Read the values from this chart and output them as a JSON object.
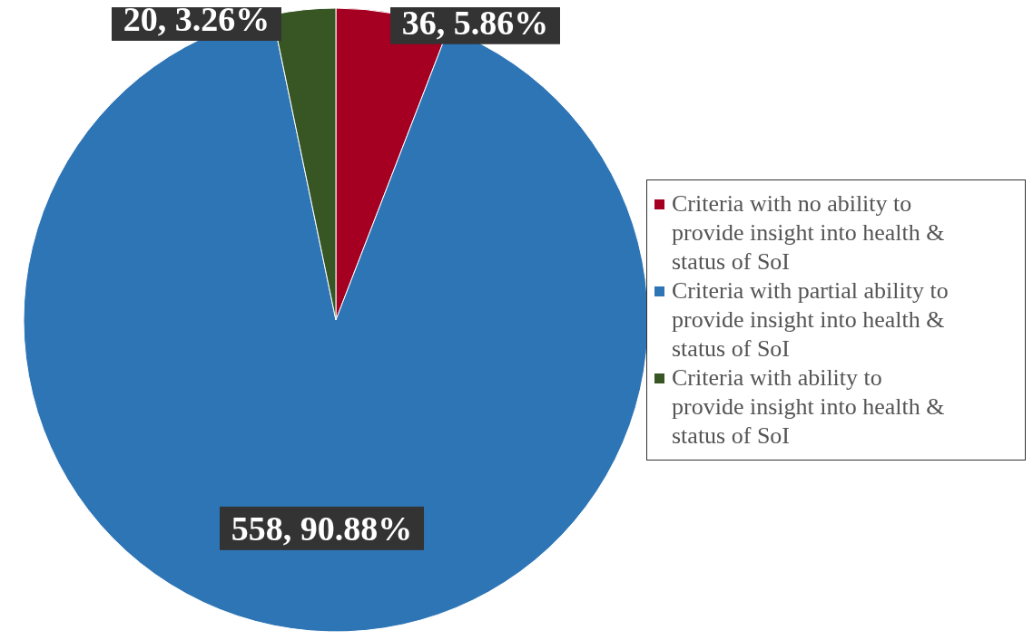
{
  "chart_data": {
    "type": "pie",
    "categories": [
      "Criteria with no ability to provide insight into health & status of SoI",
      "Criteria with partial ability to provide insight into health & status of SoI",
      "Criteria with ability to provide insight into health & status of SoI"
    ],
    "values": [
      36,
      558,
      20
    ],
    "colors": [
      "#a50021",
      "#2e75b6",
      "#375623"
    ],
    "value_labels": [
      "36, 5.86%",
      "558, 90.88%",
      "20, 3.26%"
    ],
    "legend": "right"
  }
}
